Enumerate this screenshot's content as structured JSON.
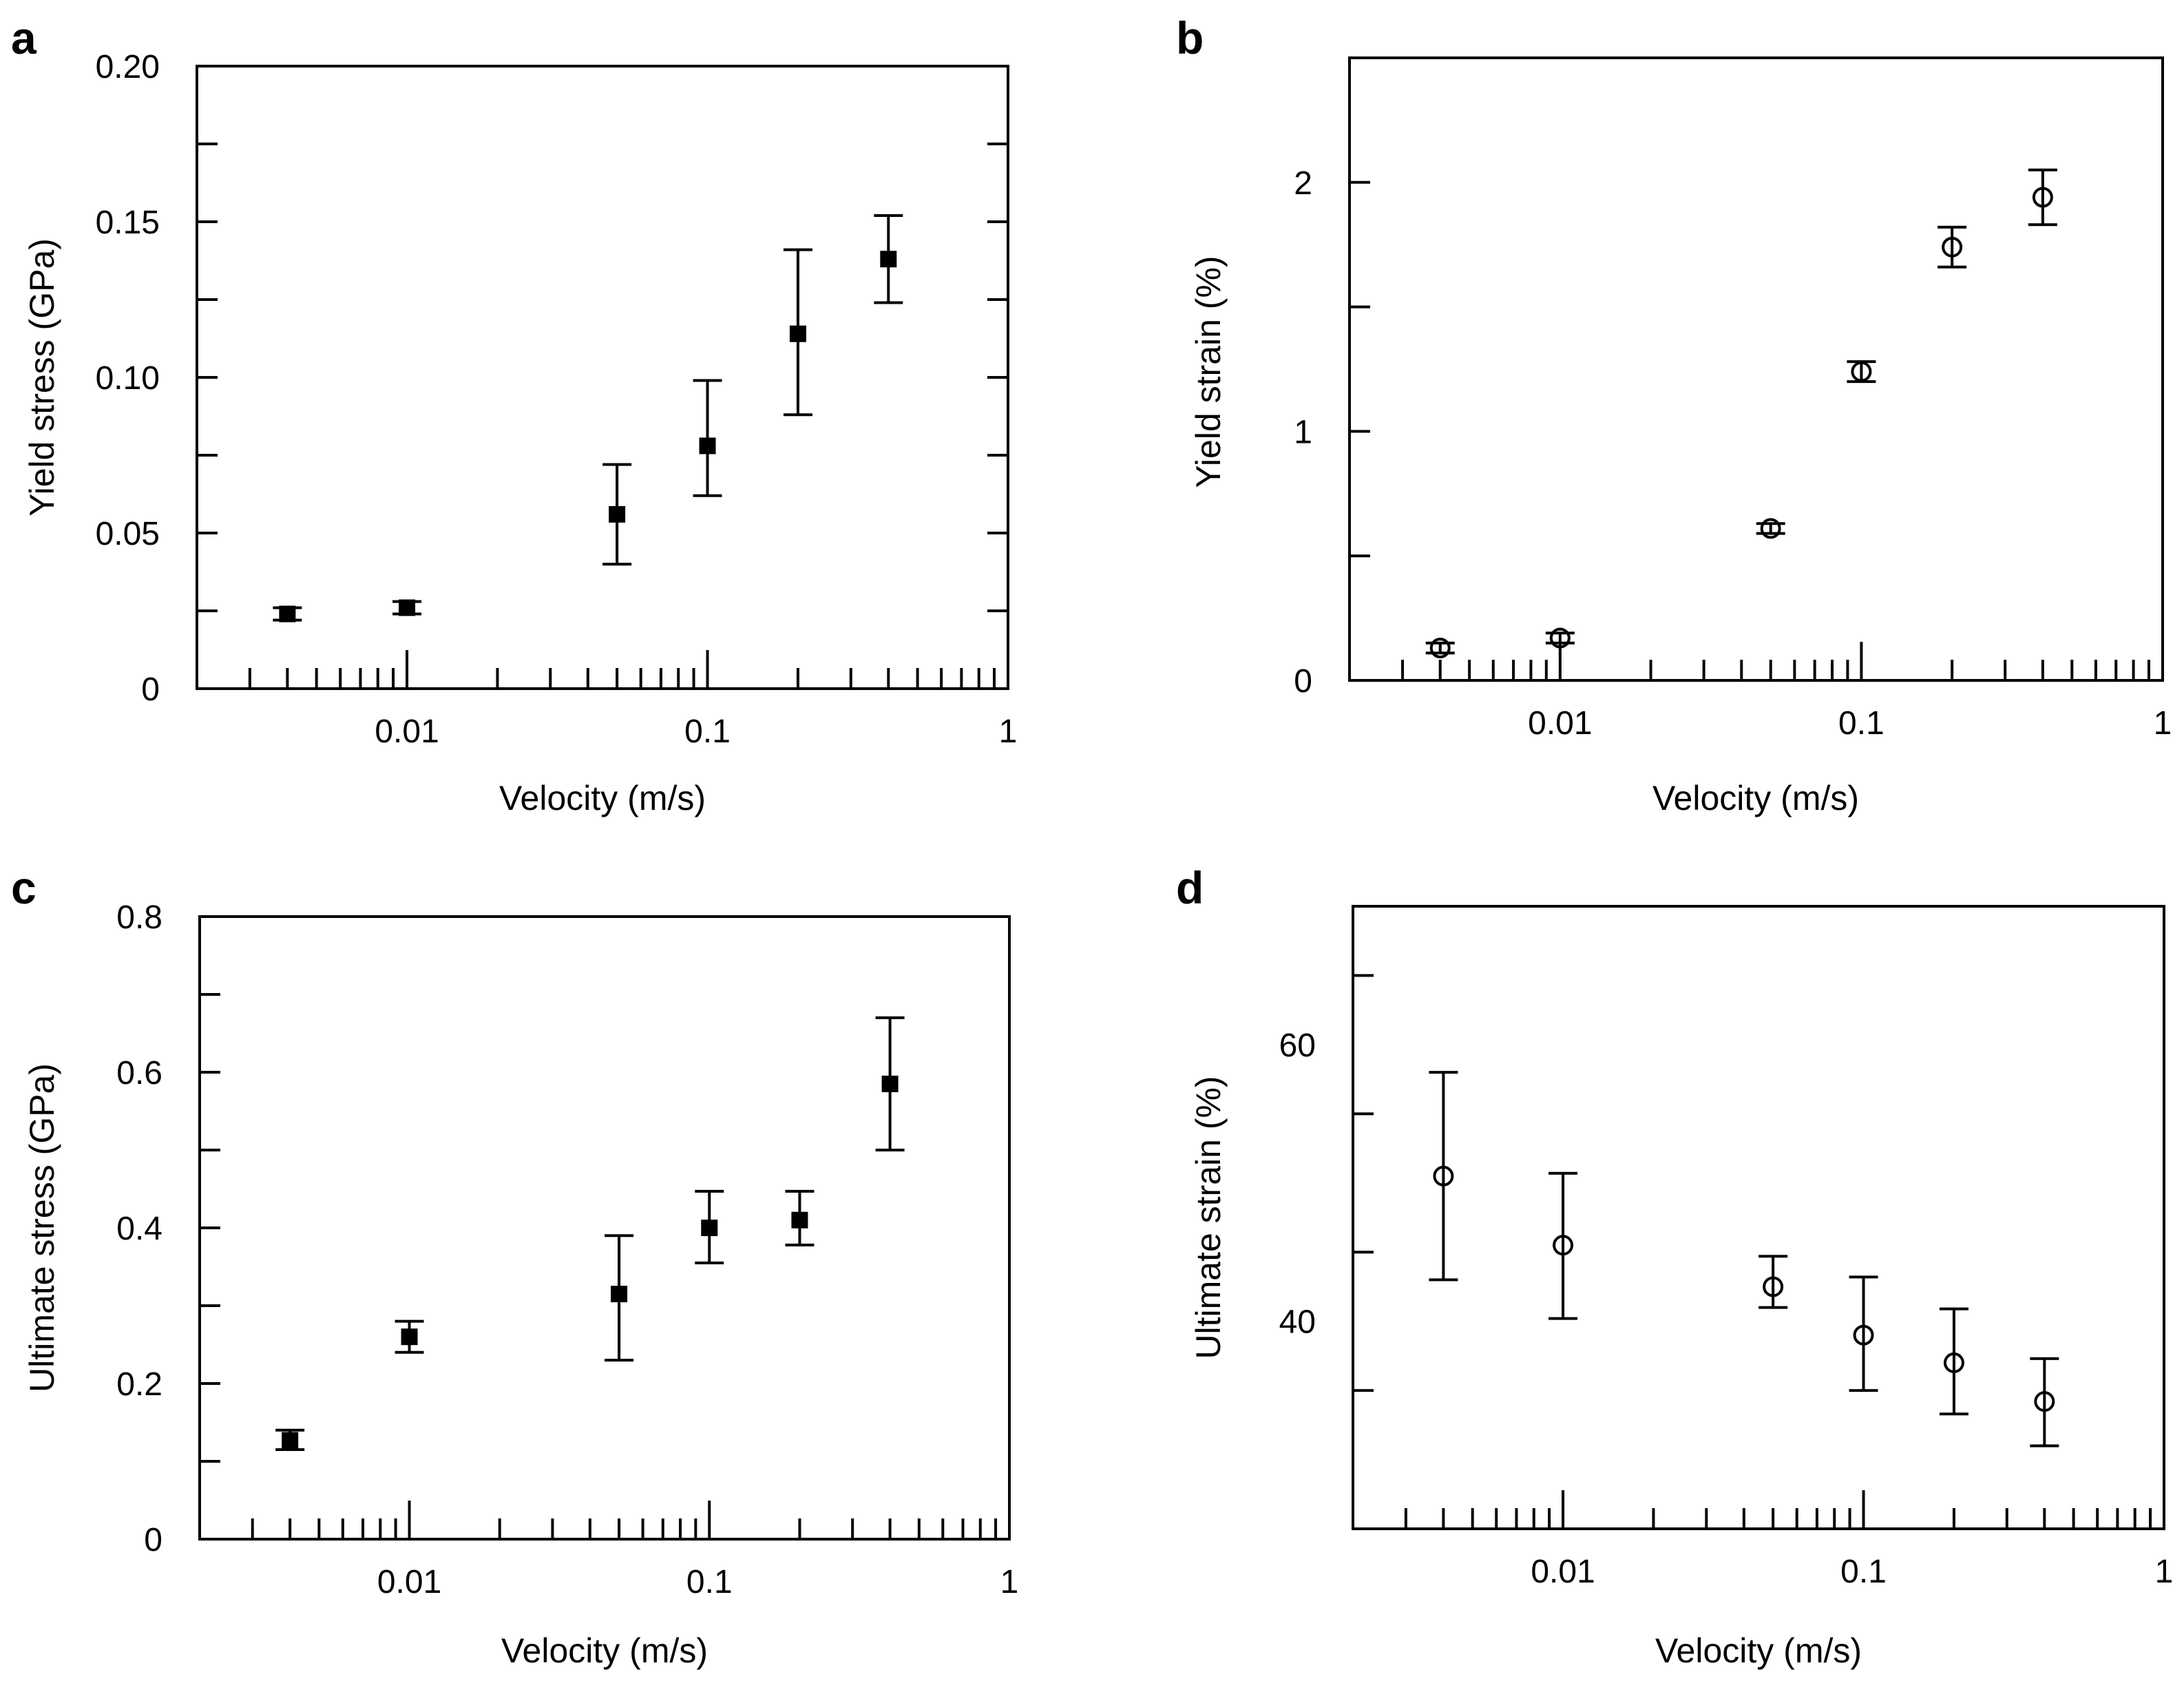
{
  "chart_data": [
    {
      "panel": "a",
      "type": "scatter",
      "xlabel": "Velocity (m/s)",
      "ylabel": "Yield stress (GPa)",
      "xscale": "log",
      "xlim": [
        0.002,
        1
      ],
      "ylim": [
        0,
        0.2
      ],
      "xticks": [
        {
          "v": 0.01,
          "label": "0.01"
        },
        {
          "v": 0.1,
          "label": "0.1"
        },
        {
          "v": 1,
          "label": "1"
        }
      ],
      "yticks": [
        {
          "v": 0,
          "label": "0"
        },
        {
          "v": 0.05,
          "label": "0.05"
        },
        {
          "v": 0.1,
          "label": "0.10"
        },
        {
          "v": 0.15,
          "label": "0.15"
        },
        {
          "v": 0.2,
          "label": "0.20"
        }
      ],
      "marker": "square",
      "points": [
        {
          "x": 0.004,
          "y": 0.024,
          "lo": 0.022,
          "hi": 0.026
        },
        {
          "x": 0.01,
          "y": 0.026,
          "lo": 0.024,
          "hi": 0.028
        },
        {
          "x": 0.05,
          "y": 0.056,
          "lo": 0.04,
          "hi": 0.072
        },
        {
          "x": 0.1,
          "y": 0.078,
          "lo": 0.062,
          "hi": 0.099
        },
        {
          "x": 0.2,
          "y": 0.114,
          "lo": 0.088,
          "hi": 0.141
        },
        {
          "x": 0.4,
          "y": 0.138,
          "lo": 0.124,
          "hi": 0.152
        }
      ]
    },
    {
      "panel": "b",
      "type": "scatter",
      "xlabel": "Velocity (m/s)",
      "ylabel": "Yield strain (%)",
      "xscale": "log",
      "xlim": [
        0.002,
        1
      ],
      "ylim": [
        0,
        2.5
      ],
      "xticks": [
        {
          "v": 0.01,
          "label": "0.01"
        },
        {
          "v": 0.1,
          "label": "0.1"
        },
        {
          "v": 1,
          "label": "1"
        }
      ],
      "yticks": [
        {
          "v": 0,
          "label": "0"
        },
        {
          "v": 1,
          "label": "1"
        },
        {
          "v": 2,
          "label": "2"
        }
      ],
      "marker": "circle",
      "points": [
        {
          "x": 0.004,
          "y": 0.13,
          "lo": 0.11,
          "hi": 0.15
        },
        {
          "x": 0.01,
          "y": 0.17,
          "lo": 0.15,
          "hi": 0.19
        },
        {
          "x": 0.05,
          "y": 0.61,
          "lo": 0.59,
          "hi": 0.63
        },
        {
          "x": 0.1,
          "y": 1.24,
          "lo": 1.2,
          "hi": 1.28
        },
        {
          "x": 0.2,
          "y": 1.74,
          "lo": 1.66,
          "hi": 1.82
        },
        {
          "x": 0.4,
          "y": 1.94,
          "lo": 1.83,
          "hi": 2.05
        }
      ]
    },
    {
      "panel": "c",
      "type": "scatter",
      "xlabel": "Velocity (m/s)",
      "ylabel": "Ultimate stress (GPa)",
      "xscale": "log",
      "xlim": [
        0.002,
        1
      ],
      "ylim": [
        0,
        0.8
      ],
      "xticks": [
        {
          "v": 0.01,
          "label": "0.01"
        },
        {
          "v": 0.1,
          "label": "0.1"
        },
        {
          "v": 1,
          "label": "1"
        }
      ],
      "yticks": [
        {
          "v": 0,
          "label": "0"
        },
        {
          "v": 0.2,
          "label": "0.2"
        },
        {
          "v": 0.4,
          "label": "0.4"
        },
        {
          "v": 0.6,
          "label": "0.6"
        },
        {
          "v": 0.8,
          "label": "0.8"
        }
      ],
      "marker": "square",
      "points": [
        {
          "x": 0.004,
          "y": 0.127,
          "lo": 0.115,
          "hi": 0.14
        },
        {
          "x": 0.01,
          "y": 0.26,
          "lo": 0.24,
          "hi": 0.28
        },
        {
          "x": 0.05,
          "y": 0.315,
          "lo": 0.23,
          "hi": 0.39
        },
        {
          "x": 0.1,
          "y": 0.4,
          "lo": 0.355,
          "hi": 0.447
        },
        {
          "x": 0.2,
          "y": 0.41,
          "lo": 0.378,
          "hi": 0.447
        },
        {
          "x": 0.4,
          "y": 0.585,
          "lo": 0.5,
          "hi": 0.67
        }
      ]
    },
    {
      "panel": "d",
      "type": "scatter",
      "xlabel": "Velocity (m/s)",
      "ylabel": "Ultimate strain (%)",
      "xscale": "log",
      "xlim": [
        0.002,
        1
      ],
      "ylim": [
        25,
        70
      ],
      "xticks": [
        {
          "v": 0.01,
          "label": "0.01"
        },
        {
          "v": 0.1,
          "label": "0.1"
        },
        {
          "v": 1,
          "label": "1"
        }
      ],
      "yticks": [
        {
          "v": 40,
          "label": "40"
        },
        {
          "v": 60,
          "label": "60"
        }
      ],
      "marker": "circle",
      "points": [
        {
          "x": 0.004,
          "y": 50.5,
          "lo": 43,
          "hi": 58
        },
        {
          "x": 0.01,
          "y": 45.5,
          "lo": 40.2,
          "hi": 50.7
        },
        {
          "x": 0.05,
          "y": 42.5,
          "lo": 41,
          "hi": 44.7
        },
        {
          "x": 0.1,
          "y": 39,
          "lo": 35,
          "hi": 43.2
        },
        {
          "x": 0.2,
          "y": 37,
          "lo": 33.3,
          "hi": 40.9
        },
        {
          "x": 0.4,
          "y": 34.2,
          "lo": 31,
          "hi": 37.3
        }
      ]
    }
  ]
}
